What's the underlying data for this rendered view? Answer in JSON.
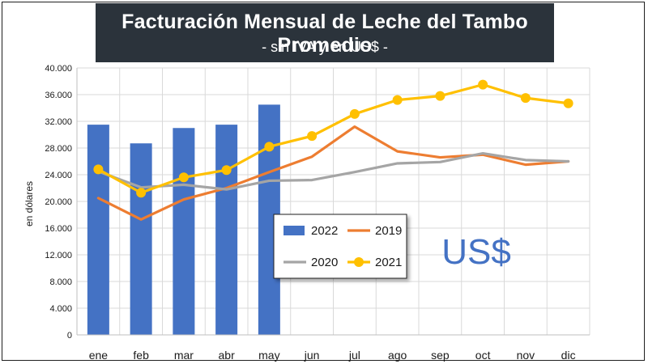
{
  "header": {
    "title": "Facturación Mensual de Leche del Tambo Promedio",
    "subtitle": "- sin IVA y en US$ -"
  },
  "overlay_text": "US$",
  "colors": {
    "title_bg": "#2b333b",
    "s2022": "#4472c4",
    "s2019": "#ed7d31",
    "s2020": "#a5a5a5",
    "s2021": "#ffc000",
    "overlay": "#4472c4",
    "grid": "#d9d9d9"
  },
  "chart_data": {
    "type": "bar+line",
    "title": "Facturación Mensual de Leche del Tambo Promedio",
    "subtitle": "- sin IVA y en US$ -",
    "xlabel": "",
    "ylabel": "en dólares",
    "ylim": [
      0,
      40000
    ],
    "yticks": [
      0,
      4000,
      8000,
      12000,
      16000,
      20000,
      24000,
      28000,
      32000,
      36000,
      40000
    ],
    "ytick_labels": [
      "0",
      "4.000",
      "8.000",
      "12.000",
      "16.000",
      "20.000",
      "24.000",
      "28.000",
      "32.000",
      "36.000",
      "40.000"
    ],
    "grid": true,
    "legend_position": "center",
    "categories": [
      "ene",
      "feb",
      "mar",
      "abr",
      "may",
      "jun",
      "jul",
      "ago",
      "sep",
      "oct",
      "nov",
      "dic"
    ],
    "series": [
      {
        "name": "2022",
        "kind": "bar",
        "values": [
          31500,
          28700,
          31000,
          31500,
          34500,
          null,
          null,
          null,
          null,
          null,
          null,
          null
        ]
      },
      {
        "name": "2019",
        "kind": "line",
        "values": [
          20500,
          17300,
          20300,
          22000,
          24400,
          26700,
          31200,
          27500,
          26600,
          27000,
          25500,
          26000
        ]
      },
      {
        "name": "2020",
        "kind": "line",
        "values": [
          24500,
          22100,
          22500,
          21800,
          23100,
          23200,
          24400,
          25700,
          25900,
          27200,
          26200,
          26000
        ]
      },
      {
        "name": "2021",
        "kind": "line-marker",
        "values": [
          24800,
          21300,
          23600,
          24700,
          28200,
          29800,
          33100,
          35200,
          35800,
          37500,
          35500,
          34700
        ]
      }
    ]
  }
}
